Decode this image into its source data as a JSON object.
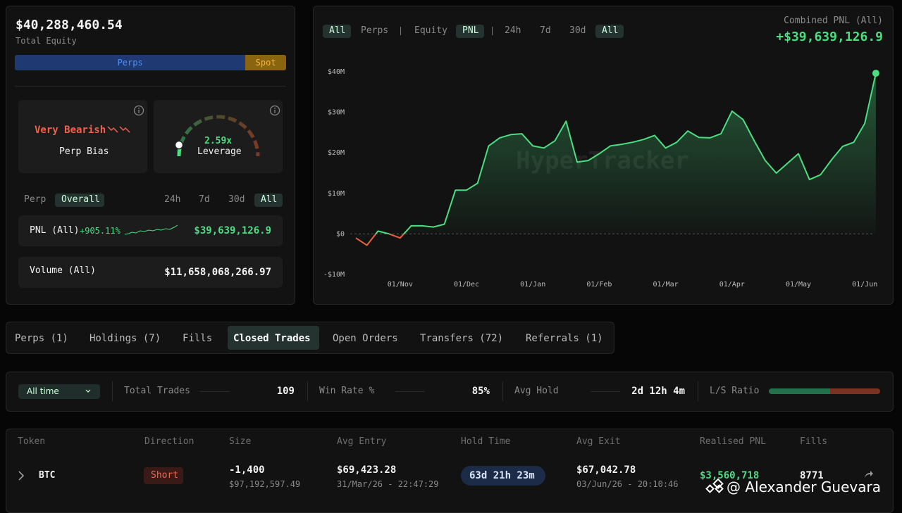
{
  "summary": {
    "total_equity": "$40,288,460.54",
    "total_equity_label": "Total Equity",
    "allocation": [
      {
        "name": "Perps",
        "value": 85,
        "color": "#1f3a72",
        "text_color": "#4f8ff7"
      },
      {
        "name": "Spot",
        "value": 15,
        "color": "#8a640f",
        "text_color": "#f5b53a"
      }
    ]
  },
  "bias": {
    "value": "Very Bearish",
    "label": "Perp Bias"
  },
  "leverage": {
    "value": "2.59x",
    "label": "Leverage"
  },
  "stats_tabs": {
    "left": [
      "Perp",
      "Overall"
    ],
    "right": [
      "24h",
      "7d",
      "30d",
      "All"
    ]
  },
  "pnl": {
    "label": "PNL (All)",
    "change": "+905.11%",
    "value": "$39,639,126.9"
  },
  "volume": {
    "label": "Volume (All)",
    "value": "$11,658,068,266.97"
  },
  "chart_filters": [
    "All",
    "Perps",
    "Equity",
    "PNL",
    "24h",
    "7d",
    "30d",
    "All"
  ],
  "chart_header": {
    "label": "Combined PNL (All)",
    "value": "+$39,639,126.9"
  },
  "chart_data": {
    "type": "line",
    "watermark": "HyperTracker",
    "categories": [
      null,
      null,
      null,
      null,
      "01/Nov",
      null,
      null,
      null,
      null,
      null,
      "01/Dec",
      null,
      null,
      null,
      null,
      null,
      "01/Jan",
      null,
      null,
      null,
      null,
      null,
      "01/Feb",
      null,
      null,
      null,
      null,
      null,
      "01/Mar",
      null,
      null,
      null,
      null,
      null,
      "01/Apr",
      null,
      null,
      null,
      null,
      null,
      "01/May",
      null,
      null,
      null,
      null,
      null,
      "01/Jun",
      null
    ],
    "values": [
      -1000000,
      -2800000,
      700000,
      0,
      -1000000,
      2000000,
      2000000,
      1700000,
      2400000,
      10800000,
      10800000,
      12500000,
      21700000,
      23700000,
      24500000,
      24700000,
      21700000,
      21200000,
      23000000,
      27800000,
      17700000,
      18100000,
      19800000,
      21700000,
      22100000,
      22600000,
      23300000,
      24300000,
      21200000,
      22600000,
      25400000,
      23800000,
      23700000,
      24700000,
      30300000,
      28200000,
      23000000,
      18100000,
      15000000,
      17400000,
      19800000,
      13400000,
      14600000,
      18300000,
      21600000,
      22600000,
      27300000,
      39639126.9
    ],
    "color": "#4ade80",
    "negative_color": "#e8603c",
    "ylim": [
      -10000000,
      40000000
    ],
    "yticks": [
      {
        "value": 40000000,
        "label": "$40M"
      },
      {
        "value": 30000000,
        "label": "$30M"
      },
      {
        "value": 20000000,
        "label": "$20M"
      },
      {
        "value": 10000000,
        "label": "$10M"
      },
      {
        "value": 0,
        "label": "$0"
      },
      {
        "value": -10000000,
        "label": "-$10M"
      }
    ],
    "zero_line": true
  },
  "tabs": [
    "Perps (1)",
    "Holdings (7)",
    "Fills",
    "Closed Trades",
    "Open Orders",
    "Transfers (72)",
    "Referrals (1)"
  ],
  "filter": {
    "period": "All time",
    "stats": [
      {
        "label": "Total Trades",
        "value": "109"
      },
      {
        "label": "Win Rate %",
        "value": "85%"
      },
      {
        "label": "Avg Hold",
        "value": "2d 12h 4m"
      }
    ],
    "ls_ratio": {
      "label": "L/S Ratio",
      "long": 55,
      "short": 45,
      "long_color": "#22704c",
      "short_color": "#7a3322"
    }
  },
  "table": {
    "headers": [
      "Token",
      "Direction",
      "Size",
      "Avg Entry",
      "Hold Time",
      "Avg Exit",
      "Realised PNL",
      "Fills"
    ],
    "rows": [
      {
        "token": "BTC",
        "direction": "Short",
        "size": "-1,400",
        "size_usd": "$97,192,597.49",
        "avg_entry": "$69,423.28",
        "entry_time": "31/Mar/26 - 22:47:29",
        "hold_time": "63d 21h 23m",
        "avg_exit": "$67,042.78",
        "exit_time": "03/Jun/26 - 20:10:46",
        "realised_pnl": "$3,560,718",
        "fills": "8771"
      }
    ]
  },
  "watermark": "@ Alexander Guevara"
}
